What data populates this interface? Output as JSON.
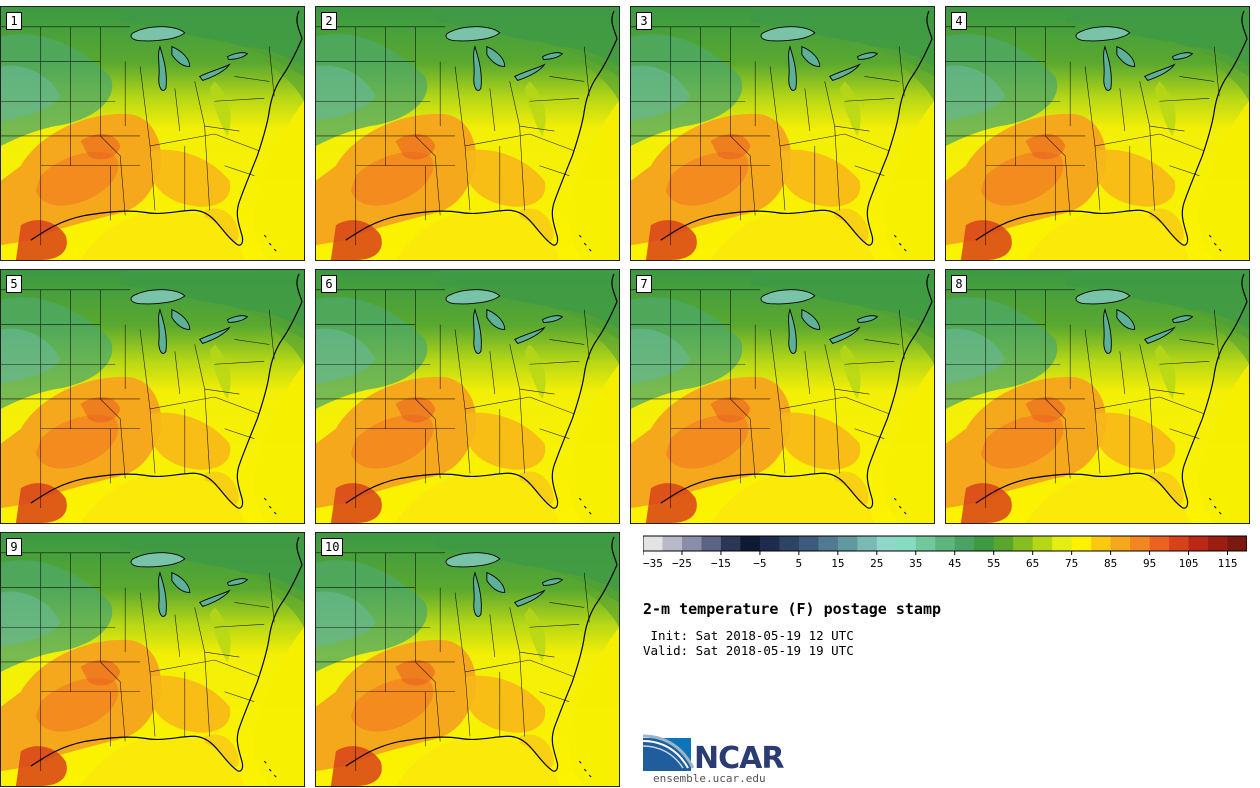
{
  "figure": {
    "title": "2-m temperature (F) postage stamp",
    "init_line": " Init: Sat 2018-05-19 12 UTC",
    "valid_line": "Valid: Sat 2018-05-19 19 UTC",
    "units": "F"
  },
  "members": [
    {
      "id": 1,
      "label": "1"
    },
    {
      "id": 2,
      "label": "2"
    },
    {
      "id": 3,
      "label": "3"
    },
    {
      "id": 4,
      "label": "4"
    },
    {
      "id": 5,
      "label": "5"
    },
    {
      "id": 6,
      "label": "6"
    },
    {
      "id": 7,
      "label": "7"
    },
    {
      "id": 8,
      "label": "8"
    },
    {
      "id": 9,
      "label": "9"
    },
    {
      "id": 10,
      "label": "10"
    }
  ],
  "colorbar": {
    "min": -35,
    "max": 120,
    "step": 5,
    "tick_labels": [
      "-35",
      "-25",
      "-15",
      "-5",
      "5",
      "15",
      "25",
      "35",
      "45",
      "55",
      "65",
      "75",
      "85",
      "95",
      "105",
      "115"
    ],
    "colors": [
      "#e3e3e6",
      "#b9bac8",
      "#8a8ea8",
      "#5b6483",
      "#2c3656",
      "#0e1a34",
      "#1d2c4d",
      "#2d4465",
      "#3c5a7c",
      "#4f7a91",
      "#62999f",
      "#7bb9b3",
      "#8fd7c9",
      "#86dcc0",
      "#72c79c",
      "#5fb57e",
      "#4aa363",
      "#3d9942",
      "#5aa52e",
      "#86bd20",
      "#b6d716",
      "#e3ef10",
      "#fff200",
      "#fbc812",
      "#f6a81c",
      "#f28620",
      "#ea6320",
      "#d8421a",
      "#bb2816",
      "#9b1e12",
      "#7b180f"
    ]
  },
  "logo": {
    "name": "NCAR",
    "url": "ensemble.ucar.edu"
  }
}
